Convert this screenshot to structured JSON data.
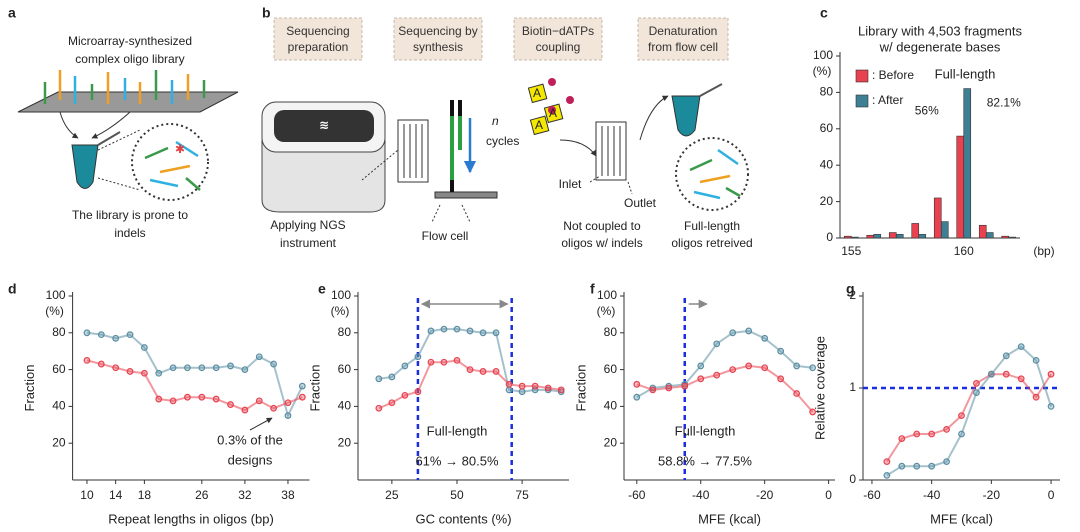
{
  "panels": [
    "a",
    "b",
    "c",
    "d",
    "e",
    "f",
    "g"
  ],
  "diagram_a": {
    "top_text": [
      "Microarray-synthesized",
      "complex oligo library"
    ],
    "bottom_text": [
      "The library is prone to",
      "indels"
    ]
  },
  "diagram_b": {
    "steps": [
      [
        "Sequencing",
        "preparation"
      ],
      [
        "Sequencing by",
        "synthesis"
      ],
      [
        "Biotin−dATPs",
        "coupling"
      ],
      [
        "Denaturation",
        "from flow cell"
      ]
    ],
    "instrument": [
      "Applying NGS",
      "instrument"
    ],
    "flow_cell": "Flow cell",
    "cycles_n": "n",
    "cycles": "cycles",
    "nucleotide": "A",
    "inlet": "Inlet",
    "outlet": "Outlet",
    "not_coupled": [
      "Not coupled to",
      "oligos w/ indels"
    ],
    "retrieved": [
      "Full-length",
      "oligos retreived"
    ]
  },
  "chart_data": [
    {
      "type": "bar",
      "title": "Library with 4,503 fragments",
      "subtitle": "w/ degenerate bases",
      "y_unit": "(%)",
      "x_label": "(bp)",
      "categories": [
        "155",
        null,
        null,
        null,
        null,
        "160",
        null,
        null
      ],
      "series": [
        {
          "name": ": Before",
          "color": "#e8414f",
          "values": [
            1,
            1.5,
            3,
            8,
            22,
            56,
            7,
            1
          ],
          "value_labels": [
            null,
            null,
            null,
            null,
            null,
            "56%",
            null,
            null
          ]
        },
        {
          "name": ": After",
          "color": "#3f7f93",
          "values": [
            0.5,
            2,
            2,
            2,
            9,
            82.1,
            3,
            0.5
          ],
          "value_labels": [
            null,
            null,
            null,
            null,
            null,
            "82.1%",
            null,
            null
          ]
        }
      ],
      "ylim": [
        0,
        100
      ],
      "yticks": [
        0,
        20,
        40,
        60,
        80,
        100
      ],
      "legend": "top-left",
      "annotations": [
        "Full-length"
      ]
    },
    {
      "type": "line",
      "x_label": "Repeat lengths in oligos (bp)",
      "y_label": "Fraction",
      "y_unit": "(%)",
      "x": [
        10,
        12,
        14,
        16,
        18,
        20,
        22,
        24,
        26,
        28,
        30,
        32,
        34,
        36,
        38,
        40
      ],
      "series": [
        {
          "color": "#5a8ea3",
          "values": [
            80,
            79,
            77,
            79,
            72,
            58,
            61,
            61,
            61,
            61,
            62,
            60,
            67,
            63,
            35,
            51
          ]
        },
        {
          "color": "#e8414f",
          "values": [
            65,
            63,
            61,
            59,
            58,
            44,
            43,
            45,
            45,
            44,
            41,
            38,
            43,
            39,
            42,
            45
          ]
        }
      ],
      "xlim": [
        8,
        41
      ],
      "xticks": [
        10,
        14,
        18,
        26,
        32,
        38
      ],
      "ylim": [
        0,
        100
      ],
      "yticks": [
        20,
        40,
        60,
        80,
        100
      ],
      "annotations": [
        "0.3% of the",
        "designs"
      ]
    },
    {
      "type": "line",
      "x_label": "GC contents (%)",
      "y_label": "Fraction",
      "y_unit": "(%)",
      "x": [
        20,
        25,
        30,
        35,
        40,
        45,
        50,
        55,
        60,
        65,
        70,
        75,
        80,
        85,
        90
      ],
      "series": [
        {
          "color": "#5a8ea3",
          "values": [
            55,
            56,
            62,
            67,
            81,
            82,
            82,
            81,
            80,
            80,
            49,
            48,
            49,
            49,
            48
          ]
        },
        {
          "color": "#e8414f",
          "values": [
            39,
            42,
            46,
            48,
            64,
            64,
            65,
            60,
            59,
            59,
            52,
            51,
            51,
            50,
            49
          ]
        }
      ],
      "xlim": [
        12,
        93
      ],
      "xticks": [
        25,
        50,
        75
      ],
      "ylim": [
        0,
        100
      ],
      "yticks": [
        20,
        40,
        60,
        80,
        100
      ],
      "vlines": [
        35,
        71
      ],
      "annotations": [
        "Full-length",
        "61% → 80.5%"
      ]
    },
    {
      "type": "line",
      "x_label": "MFE (kcal)",
      "y_label": "Fraction",
      "y_unit": "(%)",
      "x": [
        -60,
        -55,
        -50,
        -45,
        -40,
        -35,
        -30,
        -25,
        -20,
        -15,
        -10,
        -5
      ],
      "series": [
        {
          "color": "#5a8ea3",
          "values": [
            45,
            50,
            51,
            52,
            62,
            74,
            80,
            81,
            77,
            70,
            62,
            61
          ]
        },
        {
          "color": "#e8414f",
          "values": [
            52,
            49,
            50,
            51,
            55,
            57,
            60,
            62,
            61,
            55,
            47,
            37
          ]
        }
      ],
      "xlim": [
        -64,
        2
      ],
      "xticks": [
        -60,
        -40,
        -20,
        0
      ],
      "ylim": [
        0,
        100
      ],
      "yticks": [
        20,
        40,
        60,
        80,
        100
      ],
      "vlines": [
        -45
      ],
      "annotations": [
        "Full-length",
        "58.8% → 77.5%"
      ]
    },
    {
      "type": "line",
      "x_label": "MFE (kcal)",
      "y_label": "Relative coverage",
      "x": [
        -55,
        -50,
        -45,
        -40,
        -35,
        -30,
        -25,
        -20,
        -15,
        -10,
        -5,
        0
      ],
      "series": [
        {
          "color": "#e8414f",
          "values": [
            0.2,
            0.45,
            0.5,
            0.5,
            0.55,
            0.7,
            1.05,
            1.15,
            1.15,
            1.1,
            0.9,
            1.15
          ]
        },
        {
          "color": "#5a8ea3",
          "values": [
            0.05,
            0.15,
            0.15,
            0.15,
            0.2,
            0.5,
            0.95,
            1.15,
            1.35,
            1.45,
            1.3,
            0.8
          ]
        }
      ],
      "xlim": [
        -63,
        3
      ],
      "xticks": [
        -60,
        -40,
        -20,
        0
      ],
      "ylim": [
        0,
        2
      ],
      "yticks": [
        0,
        1,
        2
      ],
      "hlines": [
        1
      ]
    }
  ]
}
